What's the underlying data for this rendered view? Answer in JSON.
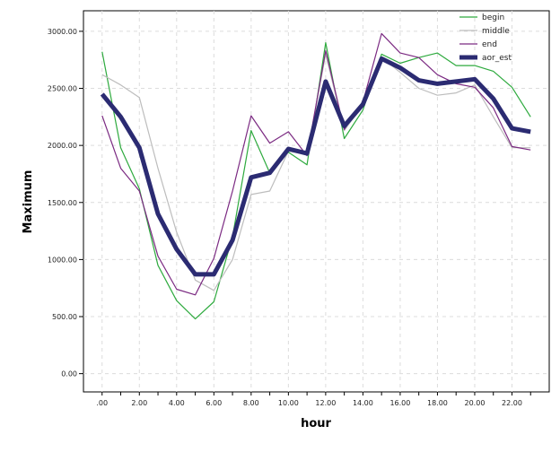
{
  "chart_data": {
    "type": "line",
    "title": "",
    "xlabel": "hour",
    "ylabel": "Maximum",
    "x": [
      0,
      1,
      2,
      3,
      4,
      5,
      6,
      7,
      8,
      9,
      10,
      11,
      12,
      13,
      14,
      15,
      16,
      17,
      18,
      19,
      20,
      21,
      22,
      23
    ],
    "x_ticks": [
      0,
      2,
      4,
      6,
      8,
      10,
      12,
      14,
      16,
      18,
      20,
      22
    ],
    "x_tick_labels": [
      ".00",
      "2.00",
      "4.00",
      "6.00",
      "8.00",
      "10.00",
      "12.00",
      "14.00",
      "16.00",
      "18.00",
      "20.00",
      "22.00"
    ],
    "xlim": [
      -1,
      24
    ],
    "y_ticks": [
      0,
      500,
      1000,
      1500,
      2000,
      2500,
      3000
    ],
    "y_tick_labels": [
      "0.00",
      "500.00",
      "1000.00",
      "1500.00",
      "2000.00",
      "2500.00",
      "3000.00"
    ],
    "ylim": [
      -160,
      3180
    ],
    "grid": true,
    "legend_position": "top-right",
    "series": [
      {
        "name": "begin",
        "color": "#2eaa3e",
        "values": [
          2820,
          1980,
          1620,
          950,
          640,
          480,
          630,
          1200,
          2130,
          1760,
          1940,
          1830,
          2900,
          2060,
          2310,
          2800,
          2720,
          2770,
          2810,
          2700,
          2700,
          2650,
          2510,
          2250
        ]
      },
      {
        "name": "middle",
        "color": "#bdbdbd",
        "values": [
          2620,
          2530,
          2420,
          1800,
          1240,
          820,
          730,
          1000,
          1570,
          1600,
          1950,
          1920,
          2800,
          2130,
          2360,
          2770,
          2640,
          2500,
          2440,
          2460,
          2530,
          2250,
          1980,
          1980
        ]
      },
      {
        "name": "end",
        "color": "#7b2a82",
        "values": [
          2260,
          1800,
          1600,
          1030,
          740,
          690,
          1010,
          1600,
          2260,
          2020,
          2120,
          1910,
          2830,
          2140,
          2380,
          2980,
          2810,
          2770,
          2620,
          2540,
          2510,
          2330,
          1990,
          1960
        ]
      },
      {
        "name": "aor_est",
        "color": "#2b2b72",
        "values": [
          2450,
          2250,
          1980,
          1400,
          1090,
          870,
          870,
          1170,
          1720,
          1760,
          1970,
          1930,
          2560,
          2170,
          2360,
          2760,
          2680,
          2570,
          2540,
          2560,
          2580,
          2410,
          2150,
          2120
        ]
      }
    ]
  }
}
